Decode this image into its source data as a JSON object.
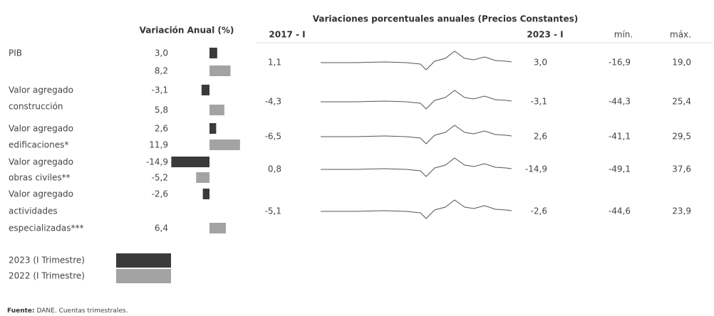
{
  "title_left": "Variación Anual (%)",
  "title_right": "Variaciones porcentuales anuales  (Precios Constantes)",
  "columns": {
    "q2017": "2017 - I",
    "q2023": "2023 - I",
    "min": "mín.",
    "max": "máx."
  },
  "legend": [
    {
      "name": "2023 (I Trimestre)",
      "color": "#3a3a3a"
    },
    {
      "name": "2022 (I Trimestre)",
      "color": "#a3a3a3"
    }
  ],
  "rows": [
    {
      "label": [
        "PIB"
      ],
      "v2023": {
        "value": 3.0,
        "label": "3,0"
      },
      "v2022": {
        "value": 8.2,
        "label": "8,2"
      },
      "q2017": "1,1",
      "q2023": "3,0",
      "min": "-16,9",
      "max": "19,0"
    },
    {
      "label": [
        "Valor agregado",
        "construcción"
      ],
      "v2023": {
        "value": -3.1,
        "label": "-3,1"
      },
      "v2022": {
        "value": 5.8,
        "label": "5,8"
      },
      "q2017": "-4,3",
      "q2023": "-3,1",
      "min": "-44,3",
      "max": "25,4"
    },
    {
      "label": [
        "Valor agregado",
        "edificaciones*"
      ],
      "v2023": {
        "value": 2.6,
        "label": "2,6"
      },
      "v2022": {
        "value": 11.9,
        "label": "11,9"
      },
      "q2017": "-6,5",
      "q2023": "2,6",
      "min": "-41,1",
      "max": "29,5"
    },
    {
      "label": [
        "Valor agregado",
        "obras civiles**"
      ],
      "v2023": {
        "value": -14.9,
        "label": "-14,9"
      },
      "v2022": {
        "value": -5.2,
        "label": "-5,2"
      },
      "q2017": "0,8",
      "q2023": "-14,9",
      "min": "-49,1",
      "max": "37,6"
    },
    {
      "label": [
        "Valor agregado",
        "actividades",
        "especializadas***"
      ],
      "v2023": {
        "value": -2.6,
        "label": "-2,6"
      },
      "v2022": {
        "value": 6.4,
        "label": "6,4"
      },
      "q2017": "-5,1",
      "q2023": "-2,6",
      "min": "-44,6",
      "max": "23,9"
    }
  ],
  "source": {
    "bold": "Fuente:",
    "text": "DANE. Cuentas trimestrales."
  }
}
